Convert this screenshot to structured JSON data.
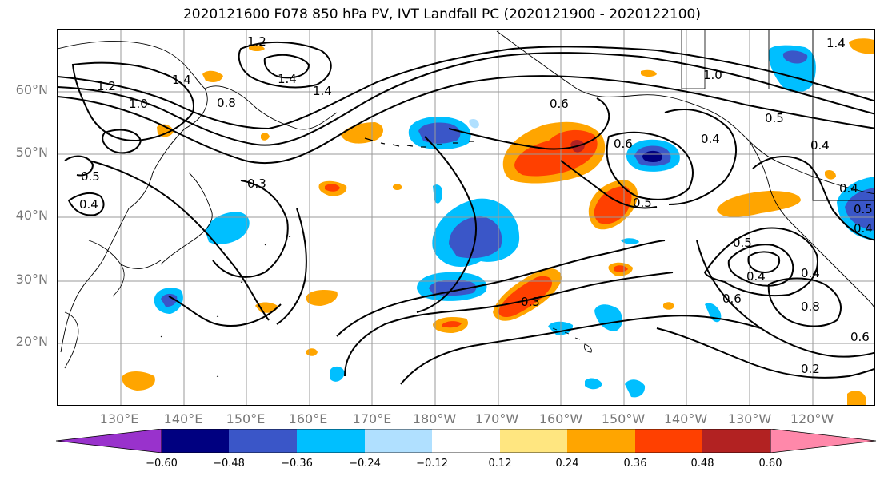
{
  "title": "2020121600 F078 850 hPa PV, IVT Landfall PC (2020121900 - 2020122100)",
  "lat_labels": [
    "60°N",
    "50°N",
    "40°N",
    "30°N",
    "20°N"
  ],
  "lon_labels": [
    "130°E",
    "140°E",
    "150°E",
    "160°E",
    "170°E",
    "180°W",
    "170°W",
    "160°W",
    "150°W",
    "140°W",
    "130°W",
    "120°W"
  ],
  "colorbar": {
    "ticks": [
      "−0.60",
      "−0.48",
      "−0.36",
      "−0.24",
      "−0.12",
      "0.12",
      "0.24",
      "0.36",
      "0.48",
      "0.60"
    ],
    "colors": [
      "#9932cc",
      "#000080",
      "#3a56c8",
      "#00bfff",
      "#b0e0ff",
      "#ffffff",
      "#ffe680",
      "#ffa500",
      "#ff4000",
      "#b22222",
      "#ff88aa"
    ]
  },
  "contour_labels": [
    "1.2",
    "1.4",
    "1.4",
    "1.2",
    "1.0",
    "1.4",
    "0.8",
    "0.6",
    "1.4",
    "1.0",
    "0.5",
    "0.4",
    "0.5",
    "0.4",
    "0.3",
    "0.6",
    "0.4",
    "0.5",
    "0.5",
    "0.4",
    "0.6",
    "0.8",
    "0.6",
    "0.2",
    "0.3",
    "0.4",
    "0.4",
    "0.5",
    "0.4"
  ]
}
